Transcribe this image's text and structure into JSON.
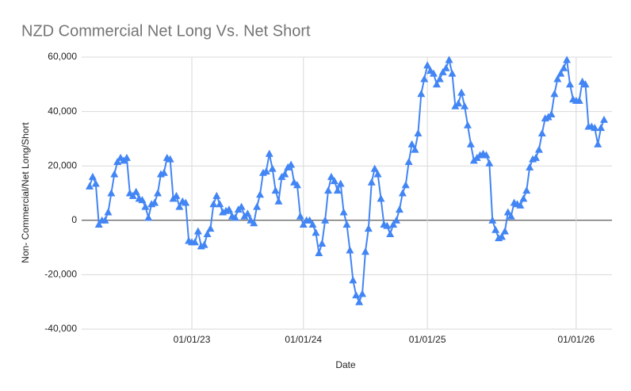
{
  "chart_data": {
    "type": "line",
    "title": "NZD Commercial Net Long Vs. Net Short",
    "x_label": "Date",
    "y_label": "Non- Commercial/Net Long/Short",
    "color": "#4285f4",
    "grid": true,
    "ylim": [
      -40000,
      60000
    ],
    "yticks": [
      {
        "value": -40000,
        "label": "-40,000"
      },
      {
        "value": -20000,
        "label": "-20,000"
      },
      0,
      {
        "value": 20000,
        "label": "20,000"
      },
      {
        "value": 40000,
        "label": "40,000"
      },
      {
        "value": 60000,
        "label": "60,000"
      }
    ],
    "categories": [
      null,
      null,
      null,
      null,
      null,
      null,
      null,
      null,
      null,
      null,
      null,
      null,
      null,
      null,
      null,
      null,
      null,
      null,
      null,
      null,
      null,
      null,
      null,
      null,
      null,
      null,
      null,
      null,
      null,
      null,
      null,
      null,
      null,
      "01/01/23",
      null,
      null,
      null,
      null,
      null,
      null,
      null,
      null,
      null,
      null,
      null,
      null,
      null,
      null,
      null,
      null,
      null,
      null,
      null,
      null,
      null,
      null,
      null,
      null,
      null,
      null,
      null,
      null,
      null,
      null,
      null,
      null,
      null,
      null,
      null,
      "01/01/24",
      null,
      null,
      null,
      null,
      null,
      null,
      null,
      null,
      null,
      null,
      null,
      null,
      null,
      null,
      null,
      null,
      null,
      null,
      null,
      null,
      null,
      null,
      null,
      null,
      null,
      null,
      null,
      null,
      null,
      null,
      null,
      null,
      null,
      null,
      null,
      null,
      null,
      null,
      null,
      "01/01/25",
      null,
      null,
      null,
      null,
      null,
      null,
      null,
      null,
      null,
      null,
      null,
      null,
      null,
      null,
      null,
      null,
      null,
      null,
      null,
      null,
      null,
      null,
      null,
      null,
      null,
      null,
      null,
      null,
      null,
      null,
      null,
      null,
      null,
      null,
      null,
      null,
      null,
      null,
      null,
      null,
      null,
      null,
      null,
      null,
      null,
      null,
      null,
      "01/01/26",
      null,
      null,
      null,
      null,
      null,
      null,
      null,
      null,
      null
    ],
    "values": [
      12500,
      16000,
      13500,
      -1500,
      0,
      0,
      3000,
      10000,
      17000,
      21500,
      23000,
      22000,
      23000,
      10000,
      9000,
      10500,
      8000,
      7500,
      5000,
      1000,
      6000,
      6500,
      10000,
      17000,
      17500,
      23000,
      22500,
      8000,
      9000,
      5000,
      7000,
      6500,
      -7500,
      -8000,
      -8000,
      -4000,
      -9500,
      -9000,
      -5000,
      -3000,
      6000,
      9000,
      6000,
      3000,
      3500,
      4000,
      1500,
      1000,
      4000,
      5000,
      1500,
      2500,
      0,
      -1000,
      5000,
      9500,
      17500,
      18000,
      24500,
      19000,
      11000,
      7000,
      16000,
      17000,
      19500,
      20500,
      14000,
      13000,
      1500,
      -1500,
      0,
      0,
      -1500,
      -4500,
      -12000,
      -8500,
      0,
      11000,
      16000,
      14500,
      11000,
      13500,
      3000,
      -1500,
      -11000,
      -22000,
      -27500,
      -30000,
      -27000,
      -11500,
      -3000,
      14000,
      19000,
      17000,
      8000,
      -1500,
      -2000,
      -5000,
      -1500,
      0,
      4000,
      10000,
      13000,
      21500,
      28000,
      26000,
      32000,
      46500,
      52000,
      57000,
      55000,
      54000,
      50000,
      52000,
      54500,
      56000,
      59000,
      54000,
      42000,
      43000,
      47000,
      42000,
      35000,
      28000,
      22000,
      23000,
      24000,
      24500,
      24000,
      21000,
      0,
      -3500,
      -6500,
      -6000,
      -4000,
      3000,
      1500,
      6500,
      6000,
      5500,
      8000,
      11000,
      19500,
      22500,
      23000,
      26000,
      32000,
      37500,
      38000,
      39000,
      46500,
      52000,
      54000,
      56000,
      59000,
      50000,
      44500,
      44000,
      44000,
      51000,
      50000,
      34500,
      34500,
      34000,
      28000,
      34000,
      37000
    ]
  }
}
